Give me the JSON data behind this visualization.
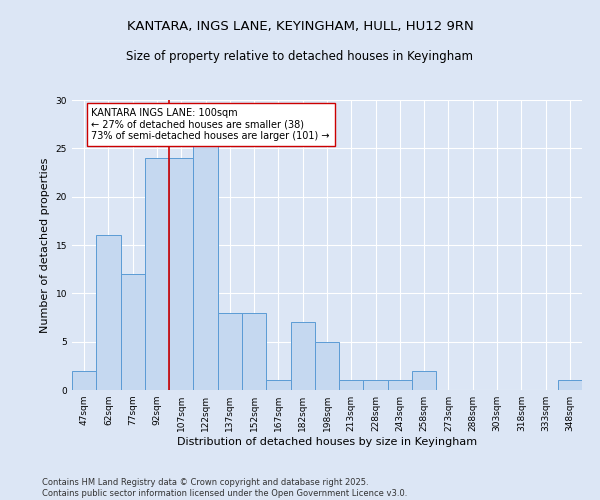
{
  "title1": "KANTARA, INGS LANE, KEYINGHAM, HULL, HU12 9RN",
  "title2": "Size of property relative to detached houses in Keyingham",
  "xlabel": "Distribution of detached houses by size in Keyingham",
  "ylabel": "Number of detached properties",
  "bins": [
    "47sqm",
    "62sqm",
    "77sqm",
    "92sqm",
    "107sqm",
    "122sqm",
    "137sqm",
    "152sqm",
    "167sqm",
    "182sqm",
    "198sqm",
    "213sqm",
    "228sqm",
    "243sqm",
    "258sqm",
    "273sqm",
    "288sqm",
    "303sqm",
    "318sqm",
    "333sqm",
    "348sqm"
  ],
  "values": [
    2,
    16,
    12,
    24,
    24,
    27,
    8,
    8,
    1,
    7,
    5,
    1,
    1,
    1,
    2,
    0,
    0,
    0,
    0,
    0,
    1
  ],
  "bar_color": "#c5d8f0",
  "bar_edge_color": "#5b9bd5",
  "vline_color": "#cc0000",
  "vline_bin_index": 3.5,
  "annotation_text": "KANTARA INGS LANE: 100sqm\n← 27% of detached houses are smaller (38)\n73% of semi-detached houses are larger (101) →",
  "annotation_box_color": "#ffffff",
  "annotation_box_edge": "#cc0000",
  "ylim": [
    0,
    30
  ],
  "yticks": [
    0,
    5,
    10,
    15,
    20,
    25,
    30
  ],
  "footer1": "Contains HM Land Registry data © Crown copyright and database right 2025.",
  "footer2": "Contains public sector information licensed under the Open Government Licence v3.0.",
  "bg_color": "#dce6f5",
  "plot_bg_color": "#dce6f5",
  "grid_color": "#ffffff",
  "title1_fontsize": 9.5,
  "title2_fontsize": 8.5,
  "label_fontsize": 8,
  "tick_fontsize": 6.5,
  "annotation_fontsize": 7,
  "footer_fontsize": 6
}
